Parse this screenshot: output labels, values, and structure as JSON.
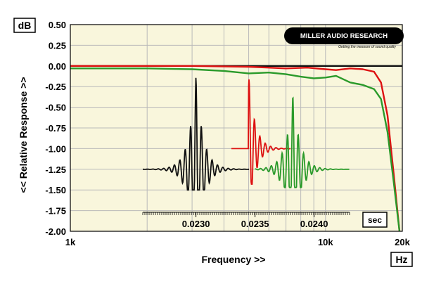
{
  "chart_data": {
    "type": "line",
    "ylabel": "<< Relative Response >>",
    "xlabel": "Frequency >>",
    "y_unit": "dB",
    "x_unit": "Hz",
    "x_scale": "log",
    "xlim": [
      1000,
      20000
    ],
    "ylim": [
      -2.0,
      0.5
    ],
    "x_ticks": [
      {
        "value": 1000,
        "label": "1k"
      },
      {
        "value": 10000,
        "label": "10k"
      },
      {
        "value": 20000,
        "label": "20k"
      }
    ],
    "y_ticks": [
      {
        "value": 0.5,
        "label": "0.50"
      },
      {
        "value": 0.25,
        "label": "0.25"
      },
      {
        "value": 0.0,
        "label": "0.00"
      },
      {
        "value": -0.25,
        "label": "-0.25"
      },
      {
        "value": -0.5,
        "label": "-0.50"
      },
      {
        "value": -0.75,
        "label": "-0.75"
      },
      {
        "value": -1.0,
        "label": "-1.00"
      },
      {
        "value": -1.25,
        "label": "-1.25"
      },
      {
        "value": -1.5,
        "label": "-1.50"
      },
      {
        "value": -1.75,
        "label": "-1.75"
      },
      {
        "value": -2.0,
        "label": "-2.00"
      }
    ],
    "grid": true,
    "background": "#f9f6dc",
    "series": [
      {
        "color": "#111111",
        "points": [
          [
            1000,
            0.0
          ],
          [
            2000,
            0.0
          ],
          [
            5000,
            0.0
          ],
          [
            10000,
            0.0
          ],
          [
            15000,
            0.0
          ],
          [
            18000,
            0.0
          ],
          [
            20000,
            0.0
          ]
        ]
      },
      {
        "color": "#dd1111",
        "points": [
          [
            1000,
            0.0
          ],
          [
            3000,
            0.0
          ],
          [
            5000,
            -0.01
          ],
          [
            7000,
            -0.03
          ],
          [
            8500,
            -0.02
          ],
          [
            10000,
            -0.04
          ],
          [
            11000,
            -0.05
          ],
          [
            12500,
            -0.03
          ],
          [
            14000,
            -0.04
          ],
          [
            15500,
            -0.07
          ],
          [
            16500,
            -0.2
          ],
          [
            17500,
            -0.6
          ],
          [
            18500,
            -1.3
          ],
          [
            19500,
            -2.0
          ]
        ]
      },
      {
        "color": "#2a9a2a",
        "points": [
          [
            1000,
            -0.03
          ],
          [
            2000,
            -0.03
          ],
          [
            3000,
            -0.04
          ],
          [
            4000,
            -0.06
          ],
          [
            5000,
            -0.09
          ],
          [
            6000,
            -0.08
          ],
          [
            7000,
            -0.1
          ],
          [
            8000,
            -0.13
          ],
          [
            9000,
            -0.15
          ],
          [
            10000,
            -0.14
          ],
          [
            11000,
            -0.12
          ],
          [
            12500,
            -0.2
          ],
          [
            14000,
            -0.23
          ],
          [
            15500,
            -0.28
          ],
          [
            16500,
            -0.4
          ],
          [
            17500,
            -0.8
          ],
          [
            18500,
            -1.4
          ],
          [
            19500,
            -2.0
          ]
        ]
      }
    ],
    "inset": {
      "unit": "sec",
      "xlim": [
        0.02255,
        0.0243
      ],
      "ticks": [
        {
          "value": 0.023,
          "label": "0.0230"
        },
        {
          "value": 0.0235,
          "label": "0.0235"
        },
        {
          "value": 0.024,
          "label": "0.0240"
        }
      ],
      "impulses": [
        {
          "color": "#111111",
          "baseline": -1.25,
          "start": 0.02255,
          "end": 0.02345,
          "peak_time": 0.023,
          "peak": -0.13,
          "trough": -1.5
        },
        {
          "color": "#dd1111",
          "baseline": -1.0,
          "start": 0.0233,
          "end": 0.0238,
          "peak_time": 0.02345,
          "peak": -0.17,
          "trough": -1.43
        },
        {
          "color": "#2a9a2a",
          "baseline": -1.25,
          "start": 0.0235,
          "end": 0.0243,
          "peak_time": 0.02382,
          "peak": -0.35,
          "trough": -1.47
        }
      ]
    }
  },
  "logo": {
    "brand": "MILLER AUDIO RESEARCH",
    "tagline": "Getting the measure of sound quality"
  }
}
